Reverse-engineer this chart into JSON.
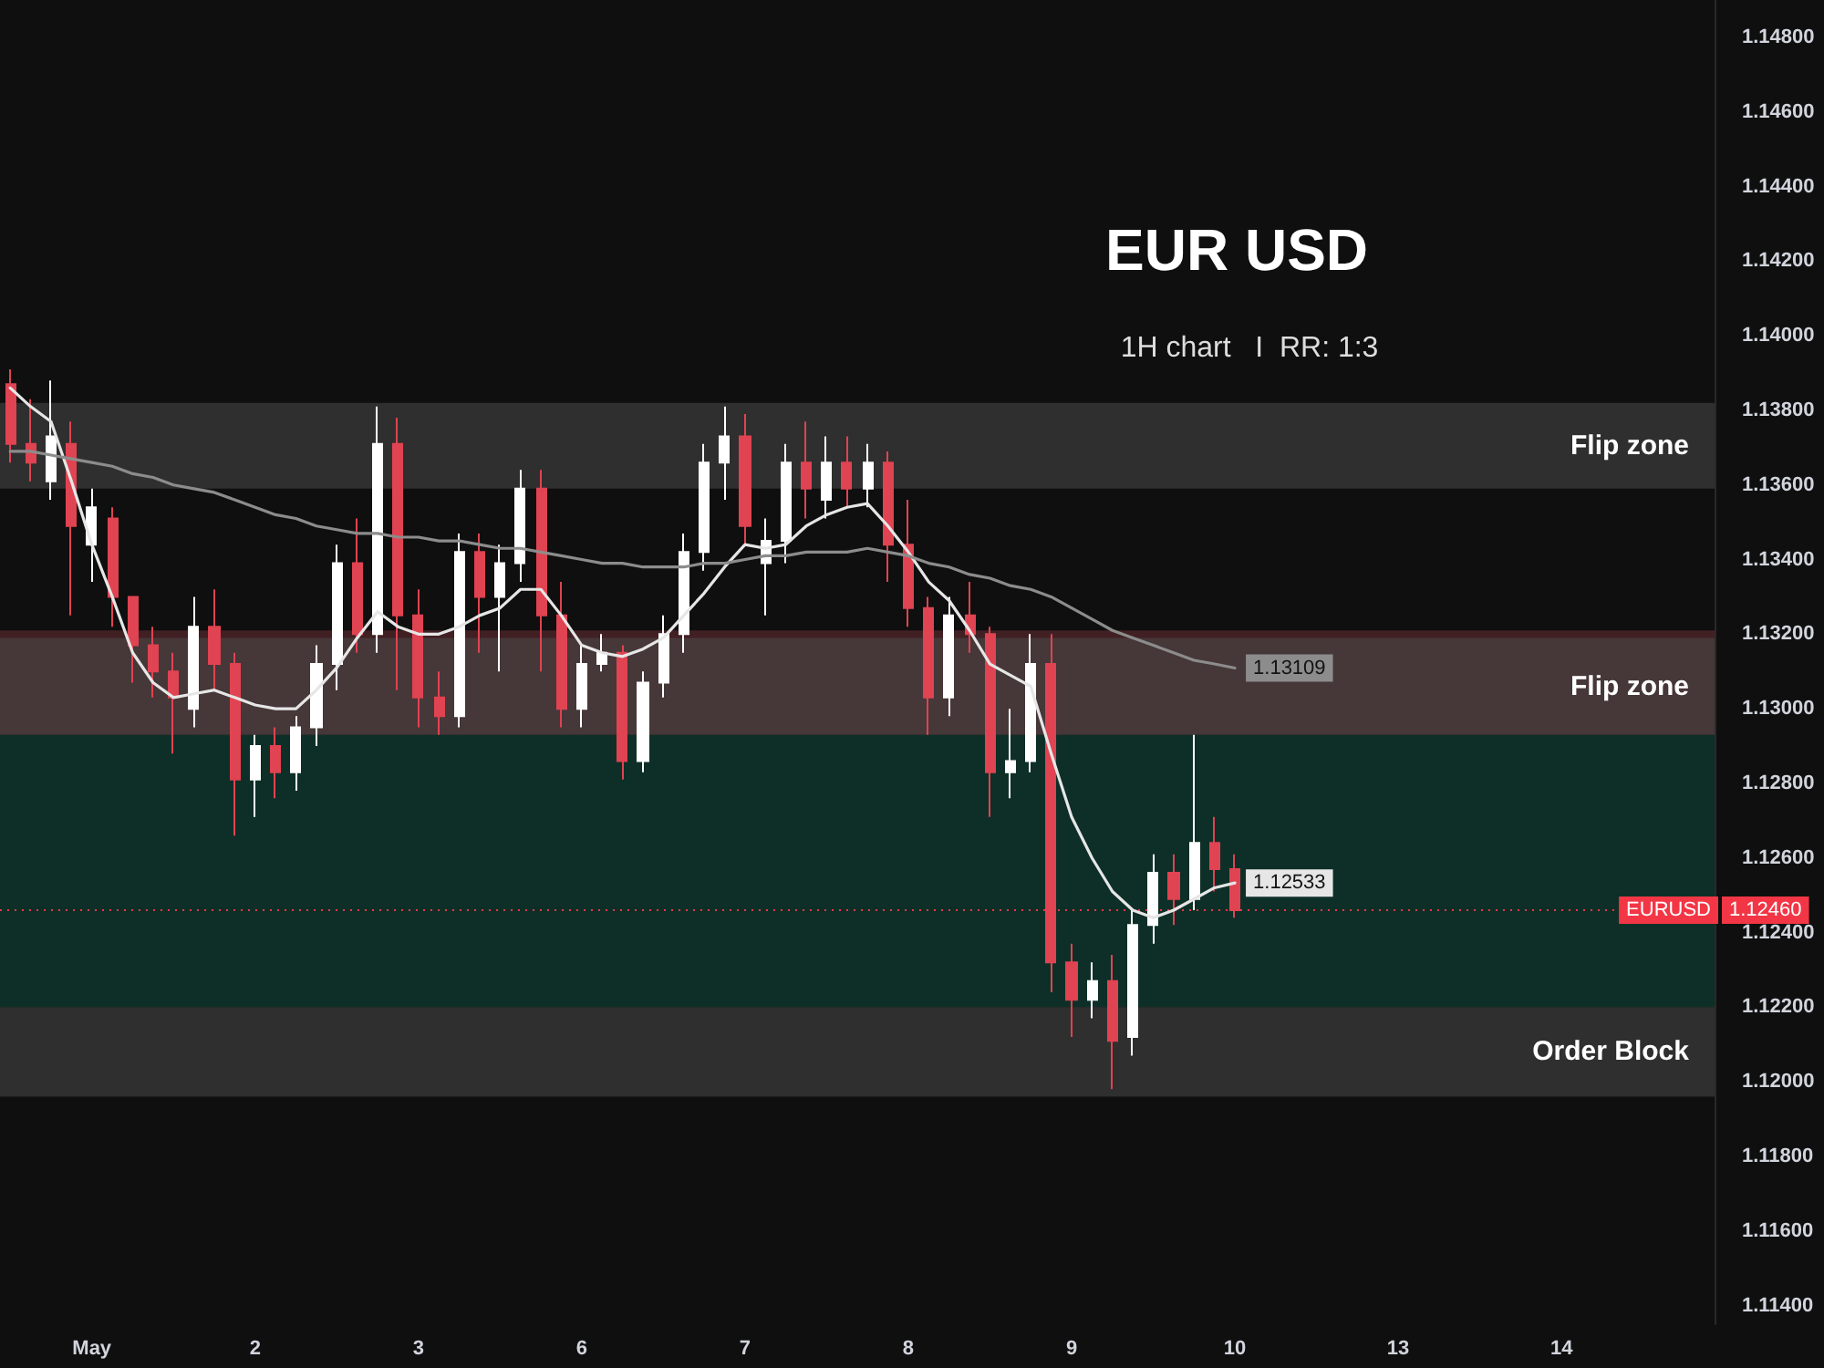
{
  "chart_data": {
    "type": "candlestick",
    "title": "EUR USD",
    "subtitle": "1H chart   I  RR: 1:3",
    "categories": [
      null,
      null,
      null,
      null,
      "May",
      null,
      null,
      null,
      null,
      null,
      null,
      null,
      "2",
      null,
      null,
      null,
      null,
      null,
      null,
      null,
      "3",
      null,
      null,
      null,
      null,
      null,
      null,
      null,
      "6",
      null,
      null,
      null,
      null,
      null,
      null,
      null,
      "7",
      null,
      null,
      null,
      null,
      null,
      null,
      null,
      "8",
      null,
      null,
      null,
      null,
      null,
      null,
      null,
      "9",
      null,
      null,
      null,
      null,
      null,
      null,
      null,
      "10",
      null,
      null,
      null,
      null,
      null,
      null,
      null,
      "13",
      null,
      null,
      null,
      null,
      null,
      null,
      null,
      "14",
      null,
      null,
      null,
      null,
      null,
      null,
      null
    ],
    "ohlc": [
      [
        1.1387,
        1.1391,
        1.1366,
        1.1371
      ],
      [
        1.1371,
        1.1383,
        1.1361,
        1.1366
      ],
      [
        1.1361,
        1.1388,
        1.1356,
        1.1373
      ],
      [
        1.1371,
        1.1377,
        1.1325,
        1.1349
      ],
      [
        1.1344,
        1.1359,
        1.1334,
        1.1354
      ],
      [
        1.1351,
        1.1354,
        1.1322,
        1.133
      ],
      [
        1.133,
        1.133,
        1.1307,
        1.1317
      ],
      [
        1.1317,
        1.1322,
        1.1303,
        1.131
      ],
      [
        1.131,
        1.1315,
        1.1288,
        1.1303
      ],
      [
        1.13,
        1.133,
        1.1295,
        1.1322
      ],
      [
        1.1322,
        1.1332,
        1.1305,
        1.1312
      ],
      [
        1.1312,
        1.1315,
        1.1266,
        1.1281
      ],
      [
        1.1281,
        1.1293,
        1.1271,
        1.129
      ],
      [
        1.129,
        1.1295,
        1.1276,
        1.1283
      ],
      [
        1.1283,
        1.1298,
        1.1278,
        1.1295
      ],
      [
        1.1295,
        1.1317,
        1.129,
        1.1312
      ],
      [
        1.1312,
        1.1344,
        1.1305,
        1.1339
      ],
      [
        1.1339,
        1.1351,
        1.1315,
        1.132
      ],
      [
        1.132,
        1.1381,
        1.1315,
        1.1371
      ],
      [
        1.1371,
        1.1378,
        1.1305,
        1.1325
      ],
      [
        1.1325,
        1.1332,
        1.1295,
        1.1303
      ],
      [
        1.1303,
        1.131,
        1.1293,
        1.1298
      ],
      [
        1.1298,
        1.1347,
        1.1295,
        1.1342
      ],
      [
        1.1342,
        1.1347,
        1.1315,
        1.133
      ],
      [
        1.133,
        1.1344,
        1.131,
        1.1339
      ],
      [
        1.1339,
        1.1364,
        1.1334,
        1.1359
      ],
      [
        1.1359,
        1.1364,
        1.131,
        1.1325
      ],
      [
        1.1325,
        1.1334,
        1.1295,
        1.13
      ],
      [
        1.13,
        1.1317,
        1.1295,
        1.1312
      ],
      [
        1.1312,
        1.132,
        1.131,
        1.1315
      ],
      [
        1.1315,
        1.1317,
        1.1281,
        1.1286
      ],
      [
        1.1286,
        1.131,
        1.1283,
        1.1307
      ],
      [
        1.1307,
        1.1325,
        1.1303,
        1.132
      ],
      [
        1.132,
        1.1347,
        1.1315,
        1.1342
      ],
      [
        1.1342,
        1.1371,
        1.1337,
        1.1366
      ],
      [
        1.1366,
        1.1381,
        1.1356,
        1.1373
      ],
      [
        1.1373,
        1.1379,
        1.1344,
        1.1349
      ],
      [
        1.1339,
        1.1351,
        1.1325,
        1.1345
      ],
      [
        1.1345,
        1.1371,
        1.1339,
        1.1366
      ],
      [
        1.1366,
        1.1377,
        1.1351,
        1.1359
      ],
      [
        1.1356,
        1.1373,
        1.1351,
        1.1366
      ],
      [
        1.1366,
        1.1373,
        1.1354,
        1.1359
      ],
      [
        1.1359,
        1.1371,
        1.1354,
        1.1366
      ],
      [
        1.1366,
        1.1369,
        1.1334,
        1.1344
      ],
      [
        1.1344,
        1.1356,
        1.1322,
        1.1327
      ],
      [
        1.1327,
        1.133,
        1.1293,
        1.1303
      ],
      [
        1.1303,
        1.133,
        1.1298,
        1.1325
      ],
      [
        1.1325,
        1.1334,
        1.1315,
        1.132
      ],
      [
        1.132,
        1.1322,
        1.1271,
        1.1283
      ],
      [
        1.1283,
        1.13,
        1.1276,
        1.1286
      ],
      [
        1.1286,
        1.132,
        1.1283,
        1.1312
      ],
      [
        1.1312,
        1.132,
        1.1224,
        1.1232
      ],
      [
        1.1232,
        1.1237,
        1.1212,
        1.1222
      ],
      [
        1.1222,
        1.1232,
        1.1217,
        1.1227
      ],
      [
        1.1227,
        1.1234,
        1.1198,
        1.1211
      ],
      [
        1.1212,
        1.1246,
        1.1207,
        1.1242
      ],
      [
        1.1242,
        1.1261,
        1.1237,
        1.1256
      ],
      [
        1.1256,
        1.1261,
        1.1242,
        1.1249
      ],
      [
        1.1249,
        1.1293,
        1.1246,
        1.1264
      ],
      [
        1.1264,
        1.1271,
        1.1251,
        1.1257
      ],
      [
        1.1257,
        1.1261,
        1.1244,
        1.1246
      ],
      null,
      null,
      null,
      null,
      null,
      null,
      null,
      null,
      null,
      null,
      null,
      null,
      null,
      null,
      null,
      null,
      null,
      null,
      null,
      null,
      null,
      null,
      null
    ],
    "series": [
      {
        "type": "line",
        "color": "#e6e6e6",
        "values": [
          1.1386,
          1.1381,
          1.1377,
          1.1361,
          1.1344,
          1.133,
          1.1315,
          1.1307,
          1.1303,
          1.1304,
          1.1305,
          1.1303,
          1.1301,
          1.13,
          1.13,
          1.1305,
          1.1311,
          1.1319,
          1.1326,
          1.1322,
          1.132,
          1.132,
          1.1322,
          1.1325,
          1.1327,
          1.1332,
          1.1332,
          1.1325,
          1.1317,
          1.1315,
          1.1314,
          1.1316,
          1.1319,
          1.1325,
          1.1331,
          1.1338,
          1.1344,
          1.1343,
          1.1344,
          1.1349,
          1.1352,
          1.1354,
          1.1355,
          1.1349,
          1.1342,
          1.1334,
          1.1329,
          1.1321,
          1.1312,
          1.1309,
          1.1306,
          1.1288,
          1.1271,
          1.126,
          1.1251,
          1.1246,
          1.1244,
          1.1246,
          1.1249,
          1.1252,
          1.12533,
          null,
          null,
          null,
          null,
          null,
          null,
          null,
          null,
          null,
          null,
          null,
          null,
          null,
          null,
          null,
          null,
          null,
          null,
          null,
          null,
          null,
          null,
          null
        ],
        "value_labels": [
          null,
          null,
          null,
          null,
          null,
          null,
          null,
          null,
          null,
          null,
          null,
          null,
          null,
          null,
          null,
          null,
          null,
          null,
          null,
          null,
          null,
          null,
          null,
          null,
          null,
          null,
          null,
          null,
          null,
          null,
          null,
          null,
          null,
          null,
          null,
          null,
          null,
          null,
          null,
          null,
          null,
          null,
          null,
          null,
          null,
          null,
          null,
          null,
          null,
          null,
          null,
          null,
          null,
          null,
          null,
          null,
          null,
          null,
          null,
          null,
          "1.12533",
          null,
          null,
          null,
          null,
          null,
          null,
          null,
          null,
          null,
          null,
          null,
          null,
          null,
          null,
          null,
          null,
          null,
          null,
          null,
          null,
          null,
          null,
          null
        ]
      },
      {
        "type": "line",
        "color": "#8c8c8c",
        "values": [
          1.1369,
          1.1369,
          1.1368,
          1.1367,
          1.1366,
          1.1365,
          1.1363,
          1.1362,
          1.136,
          1.1359,
          1.1358,
          1.1356,
          1.1354,
          1.1352,
          1.1351,
          1.1349,
          1.1348,
          1.1347,
          1.1347,
          1.1346,
          1.1346,
          1.1345,
          1.1345,
          1.1344,
          1.1343,
          1.1343,
          1.1342,
          1.1341,
          1.134,
          1.1339,
          1.1339,
          1.1338,
          1.1338,
          1.1338,
          1.1339,
          1.1339,
          1.134,
          1.1341,
          1.1341,
          1.1342,
          1.1342,
          1.1342,
          1.1343,
          1.1342,
          1.1341,
          1.1339,
          1.1338,
          1.1336,
          1.1335,
          1.1333,
          1.1332,
          1.133,
          1.1327,
          1.1324,
          1.1321,
          1.1319,
          1.1317,
          1.1315,
          1.1313,
          1.1312,
          1.13109,
          null,
          null,
          null,
          null,
          null,
          null,
          null,
          null,
          null,
          null,
          null,
          null,
          null,
          null,
          null,
          null,
          null,
          null,
          null,
          null,
          null,
          null,
          null
        ],
        "value_labels": [
          null,
          null,
          null,
          null,
          null,
          null,
          null,
          null,
          null,
          null,
          null,
          null,
          null,
          null,
          null,
          null,
          null,
          null,
          null,
          null,
          null,
          null,
          null,
          null,
          null,
          null,
          null,
          null,
          null,
          null,
          null,
          null,
          null,
          null,
          null,
          null,
          null,
          null,
          null,
          null,
          null,
          null,
          null,
          null,
          null,
          null,
          null,
          null,
          null,
          null,
          null,
          null,
          null,
          null,
          null,
          null,
          null,
          null,
          null,
          null,
          "1.13109",
          null,
          null,
          null,
          null,
          null,
          null,
          null,
          null,
          null,
          null,
          null,
          null,
          null,
          null,
          null,
          null,
          null,
          null,
          null,
          null,
          null,
          null,
          null
        ]
      }
    ],
    "ylim": [
      1.1135,
      1.149
    ],
    "yticks": [
      {
        "value": 1.114,
        "label": "1.11400"
      },
      {
        "value": 1.116,
        "label": "1.11600"
      },
      {
        "value": 1.118,
        "label": "1.11800"
      },
      {
        "value": 1.12,
        "label": "1.12000"
      },
      {
        "value": 1.122,
        "label": "1.12200"
      },
      {
        "value": 1.124,
        "label": "1.12400"
      },
      {
        "value": 1.126,
        "label": "1.12600"
      },
      {
        "value": 1.128,
        "label": "1.12800"
      },
      {
        "value": 1.13,
        "label": "1.13000"
      },
      {
        "value": 1.132,
        "label": "1.13200"
      },
      {
        "value": 1.134,
        "label": "1.13400"
      },
      {
        "value": 1.136,
        "label": "1.13600"
      },
      {
        "value": 1.138,
        "label": "1.13800"
      },
      {
        "value": 1.14,
        "label": "1.14000"
      },
      {
        "value": 1.142,
        "label": "1.14200"
      },
      {
        "value": 1.144,
        "label": "1.14400"
      },
      {
        "value": 1.146,
        "label": "1.14600"
      },
      {
        "value": 1.148,
        "label": "1.14800"
      }
    ],
    "bands": [
      {
        "axis": "y",
        "from": 1.1359,
        "to": 1.1382,
        "label": "Flip zone",
        "color": "#4a4a4a"
      },
      {
        "axis": "y",
        "from": 1.1293,
        "to": 1.1321,
        "color": "#6b2f36"
      },
      {
        "axis": "y",
        "from": 1.1293,
        "to": 1.1319,
        "label": "Flip zone",
        "color": "#4a4a4a"
      },
      {
        "axis": "y",
        "from": 1.122,
        "to": 1.1293,
        "color": "#0f4a3c"
      },
      {
        "axis": "y",
        "from": 1.1196,
        "to": 1.122,
        "label": "Order Block",
        "color": "#4a4a4a"
      }
    ],
    "ref_lines": [
      {
        "axis": "y",
        "value": 1.1246,
        "label": "EURUSD",
        "color": "#f23645",
        "line_style": "dotted"
      }
    ],
    "value_labels": [
      null,
      null,
      null,
      null,
      null,
      null,
      null,
      null,
      null,
      null,
      null,
      null,
      null,
      null,
      null,
      null,
      null,
      null,
      null,
      null,
      null,
      null,
      null,
      null,
      null,
      null,
      null,
      null,
      null,
      null,
      null,
      null,
      null,
      null,
      null,
      null,
      null,
      null,
      null,
      null,
      null,
      null,
      null,
      null,
      null,
      null,
      null,
      null,
      null,
      null,
      null,
      null,
      null,
      null,
      null,
      null,
      null,
      null,
      null,
      null,
      "1.12460",
      null,
      null,
      null,
      null,
      null,
      null,
      null,
      null,
      null,
      null,
      null,
      null,
      null,
      null,
      null,
      null,
      null,
      null,
      null,
      null,
      null,
      null,
      null
    ],
    "marker": "none",
    "line_style": "solid"
  }
}
